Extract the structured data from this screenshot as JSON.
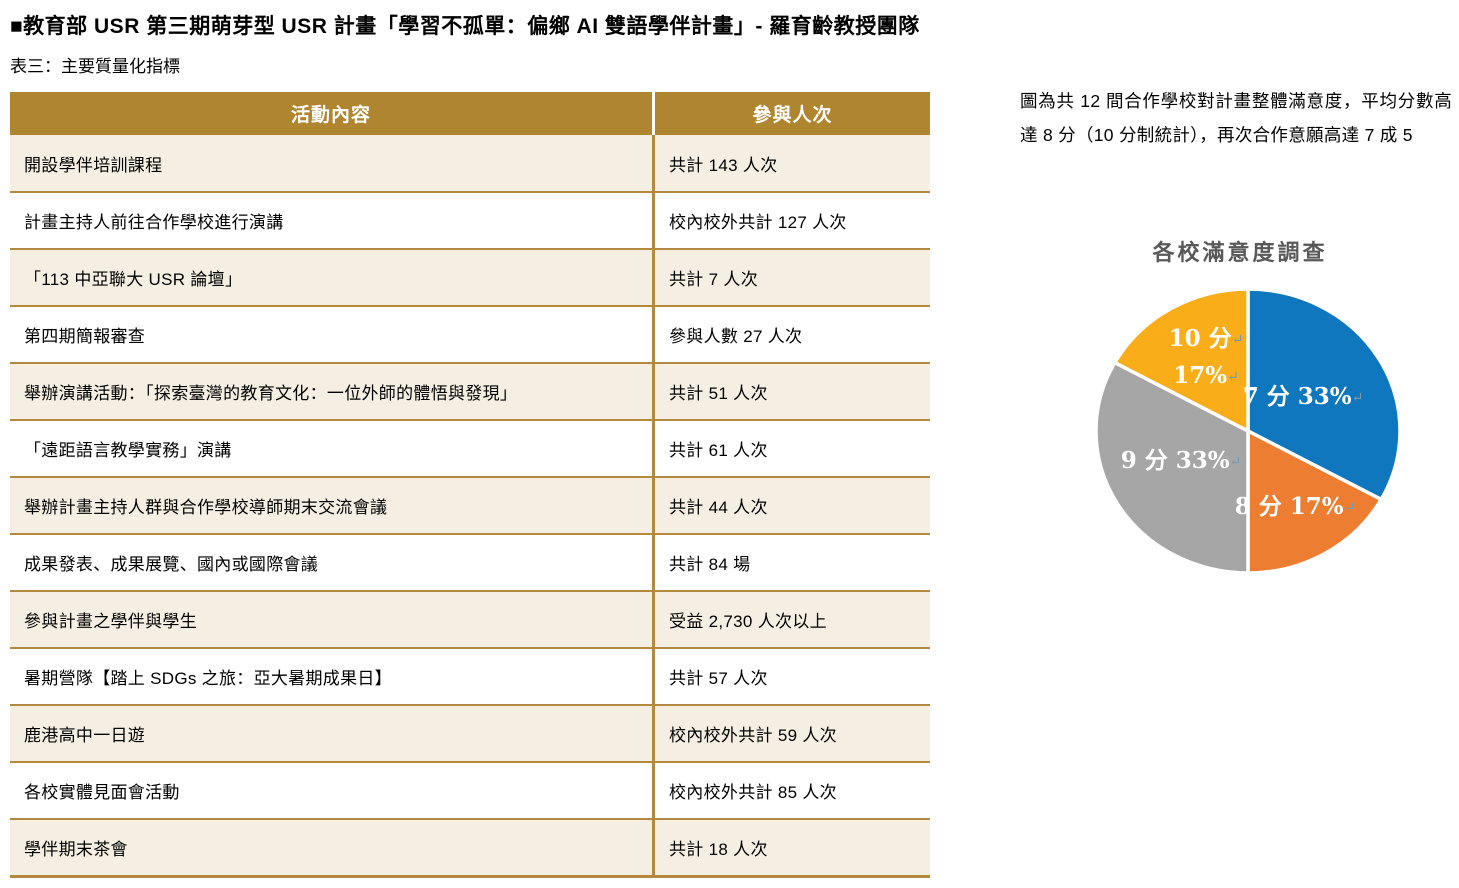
{
  "page": {
    "title": "■教育部 USR 第三期萌芽型 USR 計畫「學習不孤單：偏鄉 AI 雙語學伴計畫」- 羅育齡教授團隊",
    "subtitle": "表三：主要質量化指標"
  },
  "table": {
    "headers": [
      "活動內容",
      "參與人次"
    ],
    "rows": [
      [
        "開設學伴培訓課程",
        "共計 143 人次"
      ],
      [
        "計畫主持人前往合作學校進行演講",
        "校內校外共計 127 人次"
      ],
      [
        "「113 中亞聯大 USR 論壇」",
        "共計 7 人次"
      ],
      [
        "第四期簡報審查",
        "參與人數 27 人次"
      ],
      [
        "舉辦演講活動：「探索臺灣的教育文化：一位外師的體悟與發現」",
        "共計 51 人次"
      ],
      [
        "「遠距語言教學實務」演講",
        "共計 61 人次"
      ],
      [
        "舉辦計畫主持人群與合作學校導師期末交流會議",
        "共計 44 人次"
      ],
      [
        "成果發表、成果展覽、國內或國際會議",
        "共計 84 場"
      ],
      [
        "參與計畫之學伴與學生",
        "受益 2,730 人次以上"
      ],
      [
        "暑期營隊【踏上 SDGs 之旅：亞大暑期成果日】",
        "共計 57 人次"
      ],
      [
        "鹿港高中一日遊",
        "校內校外共計 59 人次"
      ],
      [
        "各校實體見面會活動",
        "校內校外共計 85 人次"
      ],
      [
        "學伴期末茶會",
        "共計 18 人次"
      ]
    ],
    "colors": {
      "header_bg": "#B0852F",
      "header_text": "#FFFFFF",
      "row_bg": "#FFFFFF",
      "row_alt_bg": "#F5EFE3",
      "border": "#B5893D"
    }
  },
  "note": {
    "text": "圖為共 12 間合作學校對計畫整體滿意度，平均分數高達 8 分（10 分制統計），再次合作意願高達 7 成 5"
  },
  "chart_data": {
    "type": "pie",
    "title": "各校滿意度調查",
    "categories": [
      "7 分",
      "8 分",
      "9 分",
      "10 分"
    ],
    "values": [
      33,
      17,
      33,
      17
    ],
    "unit": "%",
    "start_angle": "12-o-clock",
    "direction": "clockwise",
    "legend_position": "none (labels inside slices)",
    "slices": [
      {
        "category": "7 分",
        "pct": 33,
        "color": "#0E77BE",
        "label_lines": [
          "7 分 33%"
        ]
      },
      {
        "category": "8 分",
        "pct": 17,
        "color": "#ED7D31",
        "label_lines": [
          "8 分 17%"
        ]
      },
      {
        "category": "9 分",
        "pct": 33,
        "color": "#A6A6A6",
        "label_lines": [
          "9 分 33%"
        ]
      },
      {
        "category": "10 分",
        "pct": 17,
        "color": "#F9AD19",
        "label_lines": [
          "10 分",
          "17%"
        ]
      }
    ],
    "label_color": "#FFFFFF",
    "return_mark": "↵",
    "return_mark_color": "#7F97AB",
    "title_color": "#595959"
  }
}
